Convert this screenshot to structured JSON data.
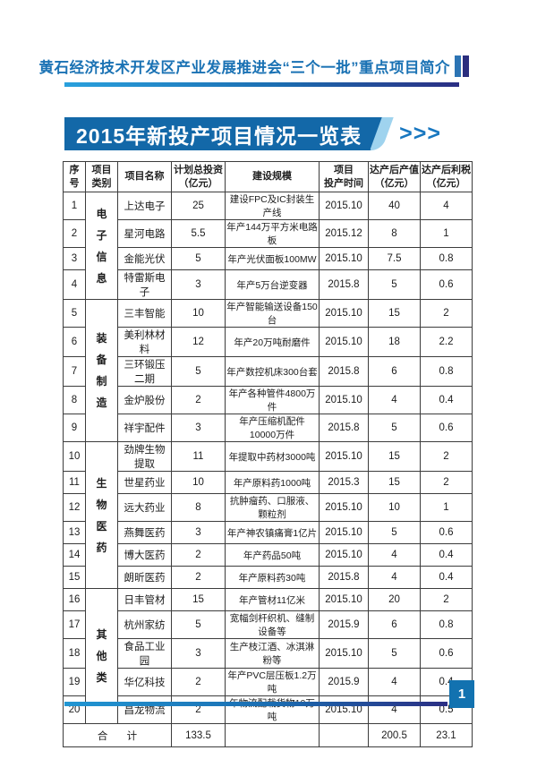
{
  "header": {
    "title": "黄石经济技术开发区产业发展推进会“三个一批”重点项目简介"
  },
  "banner": {
    "title": "2015年新投产项目情况一览表",
    "arrows": ">>>"
  },
  "table": {
    "headers": [
      "序\n号",
      "项目\n类别",
      "项目名称",
      "计划总投资\n（亿元）",
      "建设规模",
      "项目\n投产时间",
      "达产后产值\n（亿元）",
      "达产后利税\n（亿元）"
    ],
    "categories": [
      {
        "label": "电子信息",
        "start": 1,
        "span": 4
      },
      {
        "label": "装备制造",
        "start": 5,
        "span": 5
      },
      {
        "label": "生物医药",
        "start": 10,
        "span": 6
      },
      {
        "label": "其他类",
        "start": 16,
        "span": 5
      }
    ],
    "rows": [
      {
        "no": "1",
        "name": "上达电子",
        "investment": "25",
        "scale": "建设FPC及IC封装生产线",
        "time": "2015.10",
        "output": "40",
        "tax": "4"
      },
      {
        "no": "2",
        "name": "星河电路",
        "investment": "5.5",
        "scale": "年产144万平方米电路板",
        "time": "2015.12",
        "output": "8",
        "tax": "1"
      },
      {
        "no": "3",
        "name": "金能光伏",
        "investment": "5",
        "scale": "年产光伏面板100MW",
        "time": "2015.10",
        "output": "7.5",
        "tax": "0.8"
      },
      {
        "no": "4",
        "name": "特雷斯电子",
        "investment": "3",
        "scale": "年产5万台逆变器",
        "time": "2015.8",
        "output": "5",
        "tax": "0.6"
      },
      {
        "no": "5",
        "name": "三丰智能",
        "investment": "10",
        "scale": "年产智能输送设备150台",
        "time": "2015.10",
        "output": "15",
        "tax": "2"
      },
      {
        "no": "6",
        "name": "美利林材料",
        "investment": "12",
        "scale": "年产20万吨耐磨件",
        "time": "2015.10",
        "output": "18",
        "tax": "2.2"
      },
      {
        "no": "7",
        "name": "三环锻压二期",
        "investment": "5",
        "scale": "年产数控机床300台套",
        "time": "2015.8",
        "output": "6",
        "tax": "0.8"
      },
      {
        "no": "8",
        "name": "金炉股份",
        "investment": "2",
        "scale": "年产各种管件4800万件",
        "time": "2015.10",
        "output": "4",
        "tax": "0.4"
      },
      {
        "no": "9",
        "name": "祥宇配件",
        "investment": "3",
        "scale": "年产压缩机配件10000万件",
        "time": "2015.8",
        "output": "5",
        "tax": "0.6"
      },
      {
        "no": "10",
        "name": "劲牌生物提取",
        "investment": "11",
        "scale": "年提取中药材3000吨",
        "time": "2015.10",
        "output": "15",
        "tax": "2"
      },
      {
        "no": "11",
        "name": "世星药业",
        "investment": "10",
        "scale": "年产原料药1000吨",
        "time": "2015.3",
        "output": "15",
        "tax": "2"
      },
      {
        "no": "12",
        "name": "远大药业",
        "investment": "8",
        "scale": "抗肿瘤药、口服液、颗粒剂",
        "time": "2015.10",
        "output": "10",
        "tax": "1"
      },
      {
        "no": "13",
        "name": "燕舞医药",
        "investment": "3",
        "scale": "年产神农镇痛膏1亿片",
        "time": "2015.10",
        "output": "5",
        "tax": "0.6"
      },
      {
        "no": "14",
        "name": "博大医药",
        "investment": "2",
        "scale": "年产药品50吨",
        "time": "2015.10",
        "output": "4",
        "tax": "0.4"
      },
      {
        "no": "15",
        "name": "朗昕医药",
        "investment": "2",
        "scale": "年产原料药30吨",
        "time": "2015.8",
        "output": "4",
        "tax": "0.4"
      },
      {
        "no": "16",
        "name": "日丰管材",
        "investment": "15",
        "scale": "年产管材11亿米",
        "time": "2015.10",
        "output": "20",
        "tax": "2"
      },
      {
        "no": "17",
        "name": "杭州家纺",
        "investment": "5",
        "scale": "宽幅剑杆织机、缝制设备等",
        "time": "2015.9",
        "output": "6",
        "tax": "0.8"
      },
      {
        "no": "18",
        "name": "食品工业园",
        "investment": "3",
        "scale": "生产枝江酒、冰淇淋粉等",
        "time": "2015.10",
        "output": "5",
        "tax": "0.6"
      },
      {
        "no": "19",
        "name": "华亿科技",
        "investment": "2",
        "scale": "年产PVC层压板1.2万吨",
        "time": "2015.9",
        "output": "4",
        "tax": "0.4"
      },
      {
        "no": "20",
        "name": "昌龙物流",
        "investment": "2",
        "scale": "年物流配载货物10万吨",
        "time": "2015.10",
        "output": "4",
        "tax": "0.5"
      }
    ],
    "total": {
      "label": "合 计",
      "investment": "133.5",
      "scale": "",
      "time": "",
      "output": "200.5",
      "tax": "23.1"
    }
  },
  "footer": {
    "page_number": "1"
  },
  "colors": {
    "header_text": "#1a72b4",
    "rule_gradient_start": "#29a0dd",
    "rule_gradient_end": "#2b2e83",
    "banner_bg": "#1368a8",
    "banner_swoosh": "#9fd3ee",
    "banner_arrows": "#1877c0",
    "page_square": "#1272b0"
  }
}
